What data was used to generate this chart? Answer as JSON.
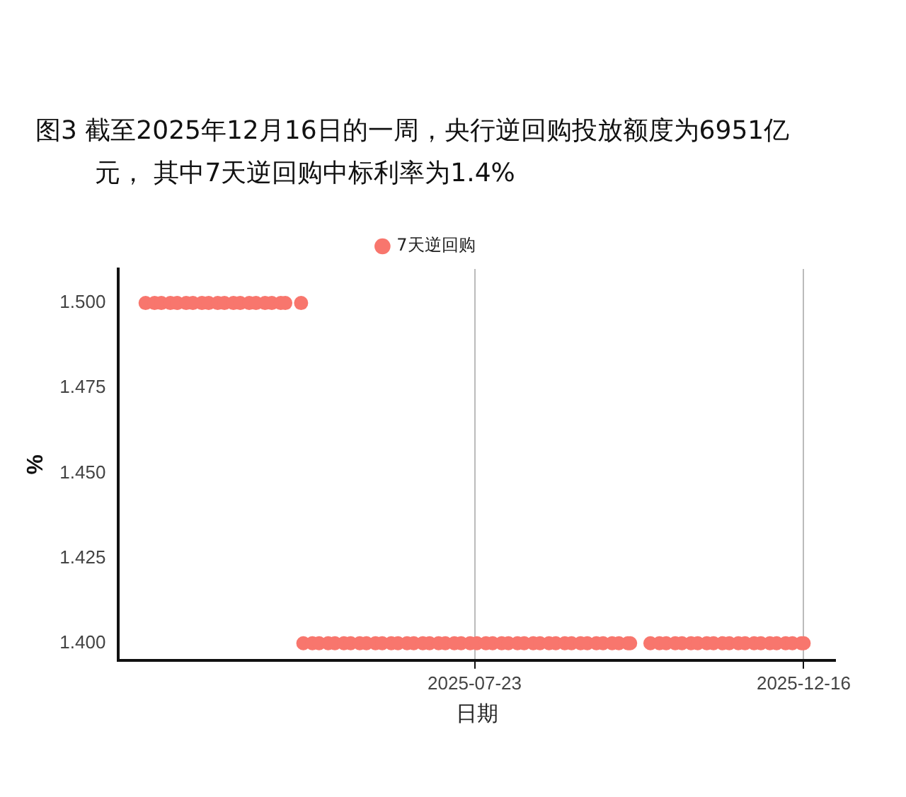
{
  "chart_data": {
    "type": "scatter",
    "title": "图3  截至2025年12月16日的一周，央行逆回购投放额度为6951亿元， 其中7天逆回购中标利率为1.4%",
    "xlabel": "日期",
    "ylabel": "%",
    "legend": "top",
    "grid": "x",
    "marker": "circle",
    "xlim": [
      "2025-02-15",
      "2025-12-30"
    ],
    "xticks": [
      "2025-07-23",
      "2025-12-16"
    ],
    "ylim": [
      1.395,
      1.51
    ],
    "yticks": [
      {
        "value": 1.4,
        "label": "1.400"
      },
      {
        "value": 1.425,
        "label": "1.425"
      },
      {
        "value": 1.45,
        "label": "1.450"
      },
      {
        "value": 1.475,
        "label": "1.475"
      },
      {
        "value": 1.5,
        "label": "1.500"
      }
    ],
    "series": [
      {
        "name": "7天逆回购",
        "color": "#f8766d",
        "x": [
          "2025-02-27",
          "2025-03-03",
          "2025-03-06",
          "2025-03-10",
          "2025-03-13",
          "2025-03-17",
          "2025-03-20",
          "2025-03-24",
          "2025-03-27",
          "2025-03-31",
          "2025-04-03",
          "2025-04-07",
          "2025-04-10",
          "2025-04-14",
          "2025-04-17",
          "2025-04-21",
          "2025-04-24",
          "2025-04-28",
          "2025-04-30",
          "2025-05-07",
          "2025-05-08",
          "2025-05-12",
          "2025-05-15",
          "2025-05-19",
          "2025-05-22",
          "2025-05-26",
          "2025-05-29",
          "2025-06-02",
          "2025-06-05",
          "2025-06-09",
          "2025-06-12",
          "2025-06-16",
          "2025-06-19",
          "2025-06-23",
          "2025-06-26",
          "2025-06-30",
          "2025-07-03",
          "2025-07-07",
          "2025-07-10",
          "2025-07-14",
          "2025-07-17",
          "2025-07-21",
          "2025-07-24",
          "2025-07-28",
          "2025-07-31",
          "2025-08-04",
          "2025-08-07",
          "2025-08-11",
          "2025-08-14",
          "2025-08-18",
          "2025-08-21",
          "2025-08-25",
          "2025-08-28",
          "2025-09-01",
          "2025-09-04",
          "2025-09-08",
          "2025-09-11",
          "2025-09-15",
          "2025-09-18",
          "2025-09-22",
          "2025-09-25",
          "2025-09-29",
          "2025-09-30",
          "2025-10-09",
          "2025-10-13",
          "2025-10-16",
          "2025-10-20",
          "2025-10-23",
          "2025-10-27",
          "2025-10-30",
          "2025-11-03",
          "2025-11-06",
          "2025-11-10",
          "2025-11-13",
          "2025-11-17",
          "2025-11-20",
          "2025-11-24",
          "2025-11-27",
          "2025-12-01",
          "2025-12-04",
          "2025-12-08",
          "2025-12-11",
          "2025-12-15",
          "2025-12-16"
        ],
        "values": [
          1.5,
          1.5,
          1.5,
          1.5,
          1.5,
          1.5,
          1.5,
          1.5,
          1.5,
          1.5,
          1.5,
          1.5,
          1.5,
          1.5,
          1.5,
          1.5,
          1.5,
          1.5,
          1.5,
          1.5,
          1.4,
          1.4,
          1.4,
          1.4,
          1.4,
          1.4,
          1.4,
          1.4,
          1.4,
          1.4,
          1.4,
          1.4,
          1.4,
          1.4,
          1.4,
          1.4,
          1.4,
          1.4,
          1.4,
          1.4,
          1.4,
          1.4,
          1.4,
          1.4,
          1.4,
          1.4,
          1.4,
          1.4,
          1.4,
          1.4,
          1.4,
          1.4,
          1.4,
          1.4,
          1.4,
          1.4,
          1.4,
          1.4,
          1.4,
          1.4,
          1.4,
          1.4,
          1.4,
          1.4,
          1.4,
          1.4,
          1.4,
          1.4,
          1.4,
          1.4,
          1.4,
          1.4,
          1.4,
          1.4,
          1.4,
          1.4,
          1.4,
          1.4,
          1.4,
          1.4,
          1.4,
          1.4,
          1.4,
          1.4
        ]
      }
    ]
  }
}
